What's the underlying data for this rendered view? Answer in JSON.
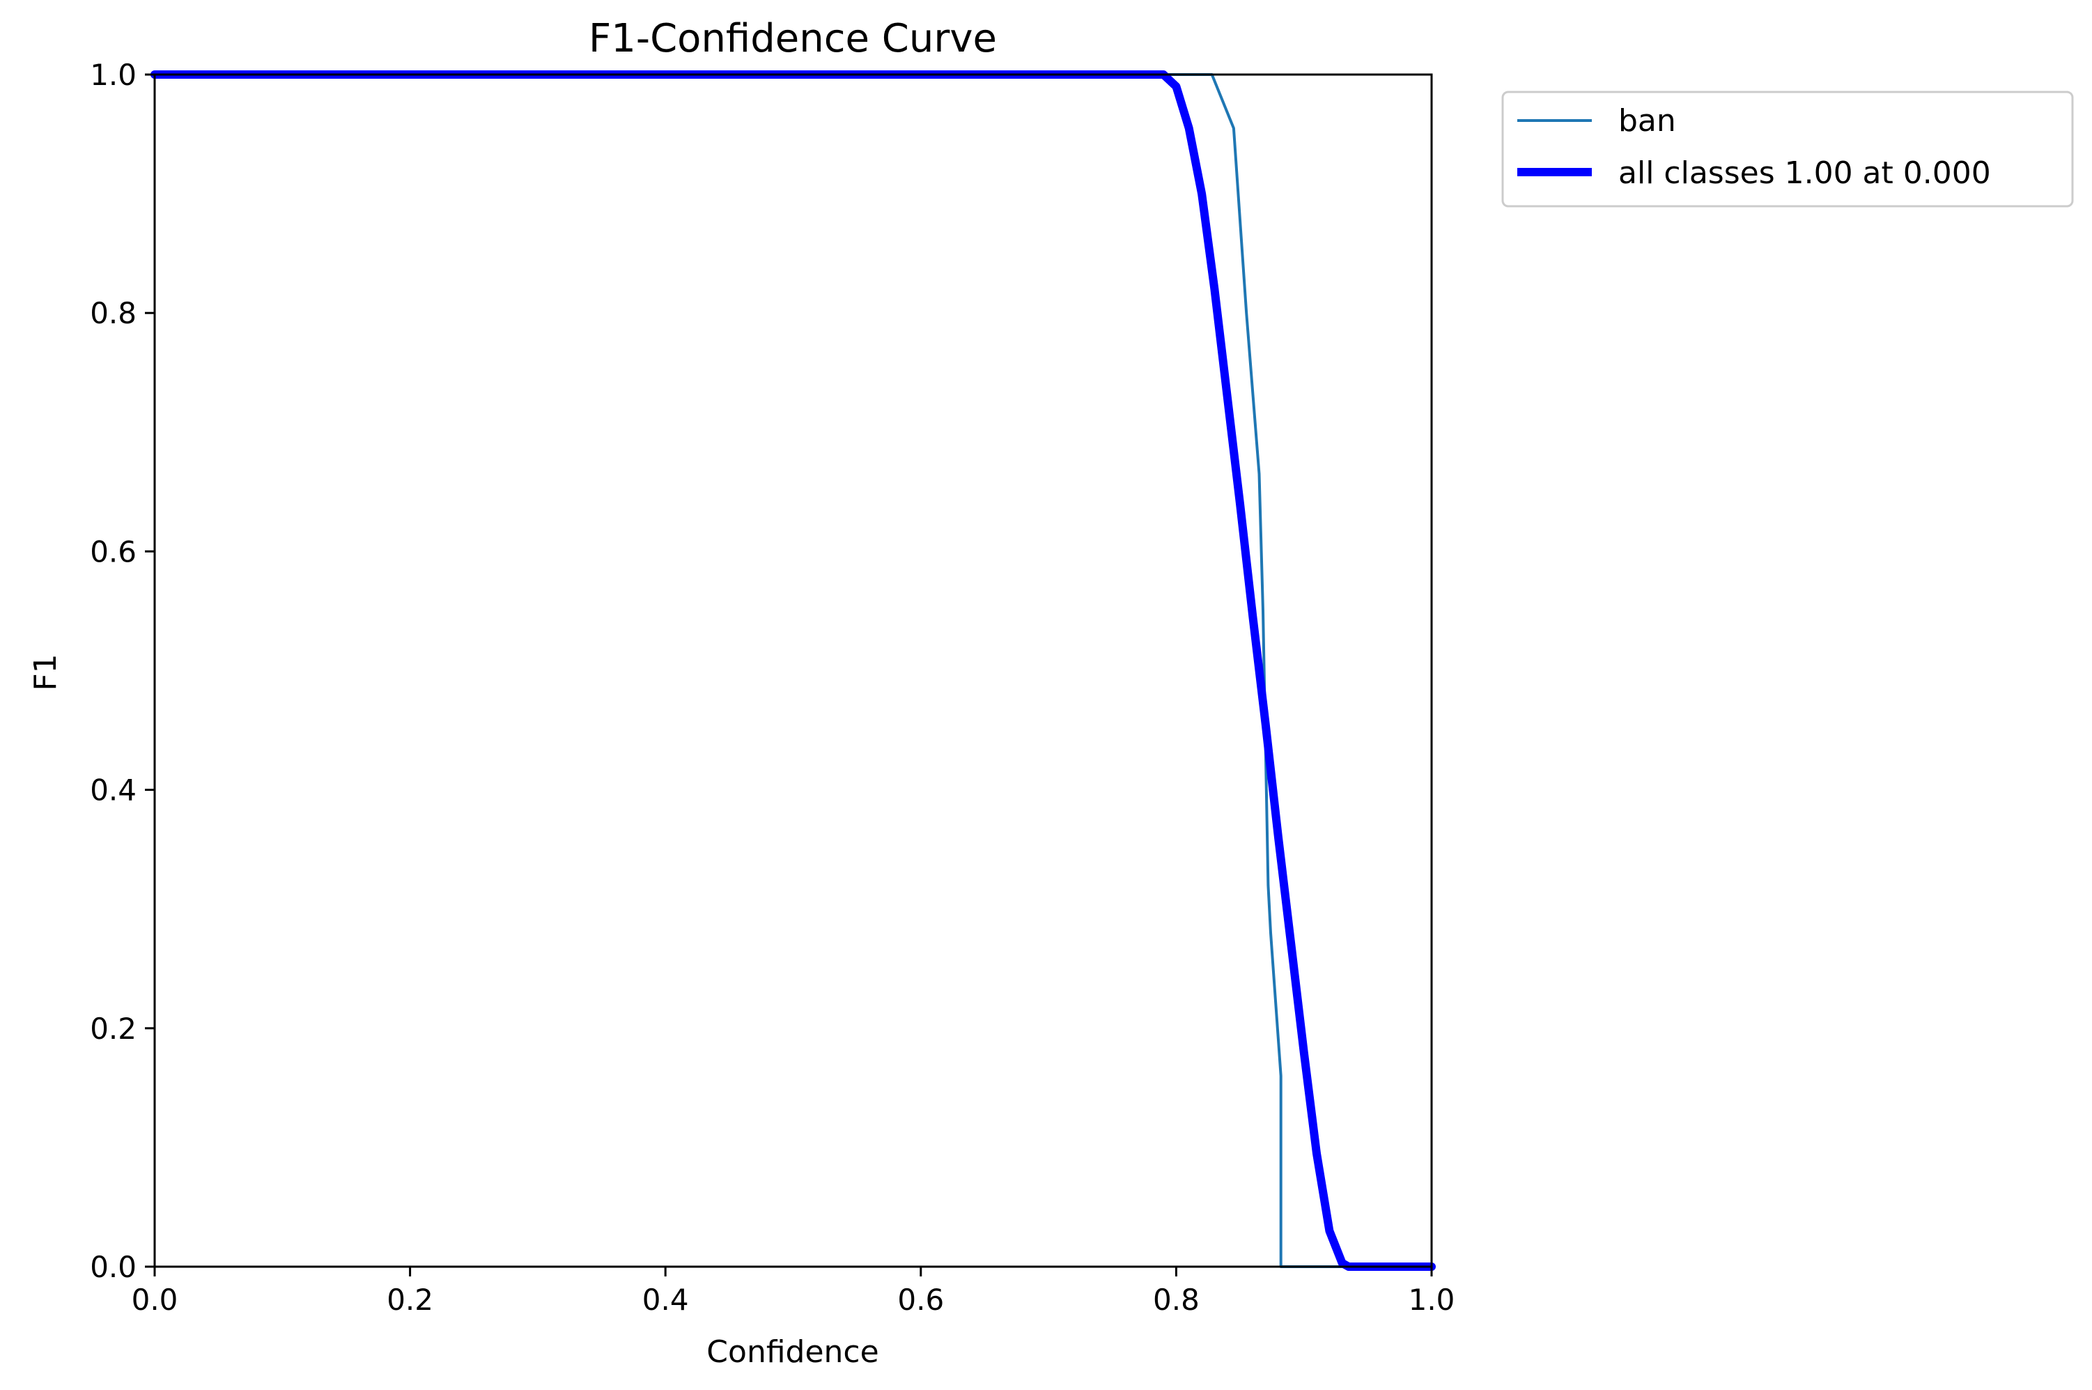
{
  "chart_data": {
    "type": "line",
    "title": "F1-Confidence Curve",
    "xlabel": "Confidence",
    "ylabel": "F1",
    "xlim": [
      0.0,
      1.0
    ],
    "ylim": [
      0.0,
      1.0
    ],
    "x_ticks": [
      "0.0",
      "0.2",
      "0.4",
      "0.6",
      "0.8",
      "1.0"
    ],
    "y_ticks": [
      "0.0",
      "0.2",
      "0.4",
      "0.6",
      "0.8",
      "1.0"
    ],
    "grid": false,
    "legend_position": "outside-top-right",
    "series": [
      {
        "name": "ban",
        "color": "#1f77b4",
        "style": "thin",
        "points": [
          [
            0.0,
            1.0
          ],
          [
            0.828,
            1.0
          ],
          [
            0.845,
            0.955
          ],
          [
            0.855,
            0.8
          ],
          [
            0.865,
            0.665
          ],
          [
            0.868,
            0.55
          ],
          [
            0.872,
            0.32
          ],
          [
            0.874,
            0.28
          ],
          [
            0.882,
            0.16
          ],
          [
            0.882,
            0.0
          ],
          [
            1.0,
            0.0
          ]
        ]
      },
      {
        "name": "all classes 1.00 at 0.000",
        "color": "#0000ff",
        "style": "thick",
        "points": [
          [
            0.0,
            1.0
          ],
          [
            0.79,
            1.0
          ],
          [
            0.8,
            0.99
          ],
          [
            0.81,
            0.955
          ],
          [
            0.82,
            0.9
          ],
          [
            0.83,
            0.82
          ],
          [
            0.84,
            0.73
          ],
          [
            0.85,
            0.64
          ],
          [
            0.86,
            0.545
          ],
          [
            0.87,
            0.455
          ],
          [
            0.88,
            0.36
          ],
          [
            0.89,
            0.27
          ],
          [
            0.9,
            0.18
          ],
          [
            0.91,
            0.095
          ],
          [
            0.92,
            0.03
          ],
          [
            0.93,
            0.003
          ],
          [
            0.935,
            0.0
          ],
          [
            1.0,
            0.0
          ]
        ]
      }
    ]
  }
}
